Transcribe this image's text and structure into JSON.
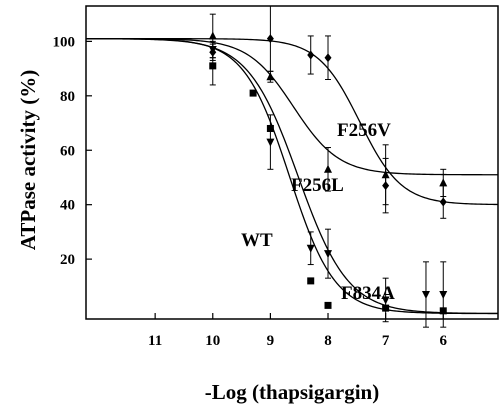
{
  "chart_data": {
    "type": "scatter",
    "title": "",
    "xlabel": "-Log (thapsigargin)",
    "ylabel": "ATPase activity (%)",
    "x_reversed": true,
    "xlim": [
      12.2,
      5.05
    ],
    "ylim": [
      -2,
      113
    ],
    "x_ticks": [
      11,
      10,
      9,
      8,
      7,
      6
    ],
    "y_ticks": [
      20,
      40,
      60,
      80,
      100
    ],
    "x_tick_labels": [
      "11",
      "10",
      "9",
      "8",
      "7",
      "6"
    ],
    "y_tick_labels": [
      "20",
      "40",
      "60",
      "80",
      "100"
    ],
    "grid": false,
    "legend": "none (series labeled directly on curves)",
    "series": [
      {
        "name": "WT",
        "marker": "square",
        "points": [
          {
            "x": 10,
            "y": 91,
            "err": 7
          },
          {
            "x": 9.3,
            "y": 81,
            "err": 0
          },
          {
            "x": 9.0,
            "y": 68,
            "err": 0
          },
          {
            "x": 8.3,
            "y": 12,
            "err": 0
          },
          {
            "x": 8.0,
            "y": 3,
            "err": 0
          },
          {
            "x": 7.0,
            "y": 2,
            "err": 0
          },
          {
            "x": 6.0,
            "y": 1,
            "err": 0
          }
        ],
        "fit": {
          "top": 101,
          "bottom": 0,
          "logIC50": 8.67,
          "hill": 1.1
        }
      },
      {
        "name": "F834A",
        "marker": "triangle-down",
        "points": [
          {
            "x": 10,
            "y": 97,
            "err": 3
          },
          {
            "x": 9.0,
            "y": 63,
            "err": 10
          },
          {
            "x": 8.3,
            "y": 24,
            "err": 6
          },
          {
            "x": 8.0,
            "y": 22,
            "err": 9
          },
          {
            "x": 7.0,
            "y": 5,
            "err": 8
          },
          {
            "x": 6.3,
            "y": 7,
            "err": 12
          },
          {
            "x": 6.0,
            "y": 7,
            "err": 12
          }
        ],
        "fit": {
          "top": 101,
          "bottom": 0,
          "logIC50": 8.52,
          "hill": 1.0
        }
      },
      {
        "name": "F256L",
        "marker": "triangle-up",
        "points": [
          {
            "x": 10,
            "y": 102,
            "err": 8
          },
          {
            "x": 9.0,
            "y": 87,
            "err": 2
          },
          {
            "x": 8.0,
            "y": 53,
            "err": 8
          },
          {
            "x": 7.0,
            "y": 51,
            "err": 11
          },
          {
            "x": 6.0,
            "y": 48,
            "err": 5
          }
        ],
        "fit": {
          "top": 101,
          "bottom": 51,
          "logIC50": 8.6,
          "hill": 1.1
        }
      },
      {
        "name": "F256V",
        "marker": "diamond",
        "points": [
          {
            "x": 10,
            "y": 96,
            "err": 3
          },
          {
            "x": 9.0,
            "y": 101,
            "err": 12
          },
          {
            "x": 8.3,
            "y": 95,
            "err": 7
          },
          {
            "x": 8.0,
            "y": 94,
            "err": 8
          },
          {
            "x": 7.0,
            "y": 47,
            "err": 10
          },
          {
            "x": 6.0,
            "y": 41,
            "err": 6
          }
        ],
        "fit": {
          "top": 101,
          "bottom": 40,
          "logIC50": 7.45,
          "hill": 1.2
        }
      }
    ]
  }
}
